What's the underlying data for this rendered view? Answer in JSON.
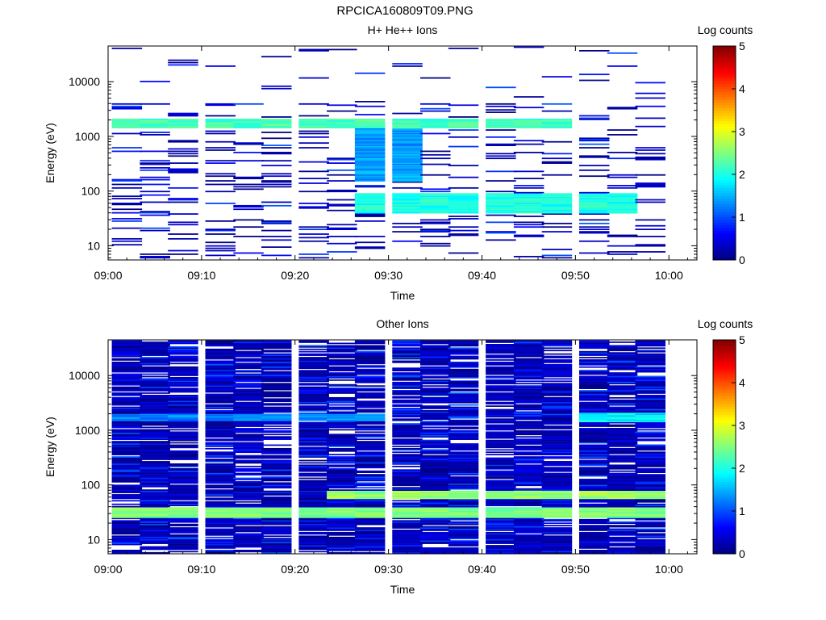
{
  "page_title": "RPCICA160809T09.PNG",
  "chart_data": [
    {
      "type": "heatmap",
      "title": "H+ He++ Ions",
      "xlabel": "Time",
      "ylabel": "Energy (eV)",
      "x_ticks": [
        "09:00",
        "09:10",
        "09:20",
        "09:30",
        "09:40",
        "09:50",
        "10:00"
      ],
      "xlim": [
        "09:00",
        "10:03"
      ],
      "y_scale": "log",
      "ylim": [
        5.5,
        45000
      ],
      "y_ticks": [
        "10",
        "100",
        "1000",
        "10000"
      ],
      "colorbar": {
        "label": "Log counts",
        "range": [
          0,
          5
        ],
        "ticks": [
          "0",
          "1",
          "2",
          "3",
          "4",
          "5"
        ],
        "colormap": "jet"
      },
      "time_bins": [
        "09:02",
        "09:05",
        "09:08",
        "09:12",
        "09:15",
        "09:18",
        "09:22",
        "09:25",
        "09:28",
        "09:32",
        "09:35",
        "09:38",
        "09:42",
        "09:45",
        "09:48",
        "09:52",
        "09:55",
        "09:58"
      ],
      "features": [
        {
          "energy_range": [
            1400,
            2100
          ],
          "time_range": [
            "09:02",
            "09:48"
          ],
          "log_counts": 2.2
        },
        {
          "energy_range": [
            40,
            90
          ],
          "time_range": [
            "09:28",
            "09:55"
          ],
          "log_counts": 2.0
        },
        {
          "energy_range": [
            150,
            1500
          ],
          "time_range": [
            "09:28",
            "09:32"
          ],
          "log_counts": 1.4
        }
      ]
    },
    {
      "type": "heatmap",
      "title": "Other Ions",
      "xlabel": "Time",
      "ylabel": "Energy (eV)",
      "x_ticks": [
        "09:00",
        "09:10",
        "09:20",
        "09:30",
        "09:40",
        "09:50",
        "10:00"
      ],
      "xlim": [
        "09:00",
        "10:03"
      ],
      "y_scale": "log",
      "ylim": [
        5.5,
        45000
      ],
      "y_ticks": [
        "10",
        "100",
        "1000",
        "10000"
      ],
      "colorbar": {
        "label": "Log counts",
        "range": [
          0,
          5
        ],
        "ticks": [
          "0",
          "1",
          "2",
          "3",
          "4",
          "5"
        ],
        "colormap": "jet"
      },
      "time_bins": [
        "09:02",
        "09:05",
        "09:08",
        "09:12",
        "09:15",
        "09:18",
        "09:22",
        "09:25",
        "09:28",
        "09:32",
        "09:35",
        "09:38",
        "09:42",
        "09:45",
        "09:48",
        "09:52",
        "09:55",
        "09:58"
      ],
      "features": [
        {
          "energy_range": [
            25,
            40
          ],
          "time_range": [
            "09:02",
            "09:58"
          ],
          "log_counts": 2.5
        },
        {
          "energy_range": [
            55,
            80
          ],
          "time_range": [
            "09:25",
            "09:58"
          ],
          "log_counts": 2.6
        },
        {
          "energy_range": [
            1500,
            2000
          ],
          "time_range": [
            "09:02",
            "09:28"
          ],
          "log_counts": 1.3
        },
        {
          "energy_range": [
            1400,
            2100
          ],
          "time_range": [
            "09:52",
            "09:58"
          ],
          "log_counts": 1.8
        }
      ]
    }
  ]
}
